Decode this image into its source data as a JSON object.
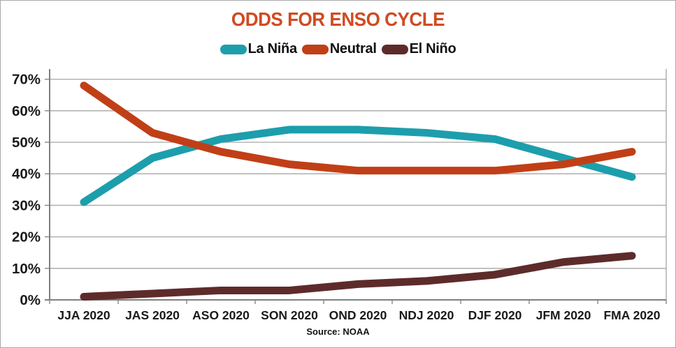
{
  "source": "Source: NOAA",
  "chart_data": {
    "type": "line",
    "title": "ODDS FOR ENSO CYCLE",
    "title_color": "#d14a21",
    "categories": [
      "JJA 2020",
      "JAS 2020",
      "ASO 2020",
      "SON 2020",
      "OND 2020",
      "NDJ 2020",
      "DJF 2020",
      "JFM 2020",
      "FMA 2020"
    ],
    "series": [
      {
        "name": "La Niña",
        "color": "#1d9eac",
        "values": [
          31,
          45,
          51,
          54,
          54,
          53,
          51,
          45,
          39
        ]
      },
      {
        "name": "Neutral",
        "color": "#c13f16",
        "values": [
          68,
          53,
          47,
          43,
          41,
          41,
          41,
          43,
          47
        ]
      },
      {
        "name": "El Niño",
        "color": "#5e2b2b",
        "values": [
          1,
          2,
          3,
          3,
          5,
          6,
          8,
          12,
          14
        ]
      }
    ],
    "xlabel": "",
    "ylabel": "",
    "ylim": [
      0,
      70
    ],
    "ytick_step": 10,
    "ytick_labels": [
      "0%",
      "10%",
      "20%",
      "30%",
      "40%",
      "50%",
      "60%",
      "70%"
    ],
    "grid": true,
    "legend_position": "top",
    "gridline_color": "#a6a6a6",
    "axis_color": "#7f7f7f",
    "label_color": "#1a1a1a",
    "line_width": 11
  }
}
